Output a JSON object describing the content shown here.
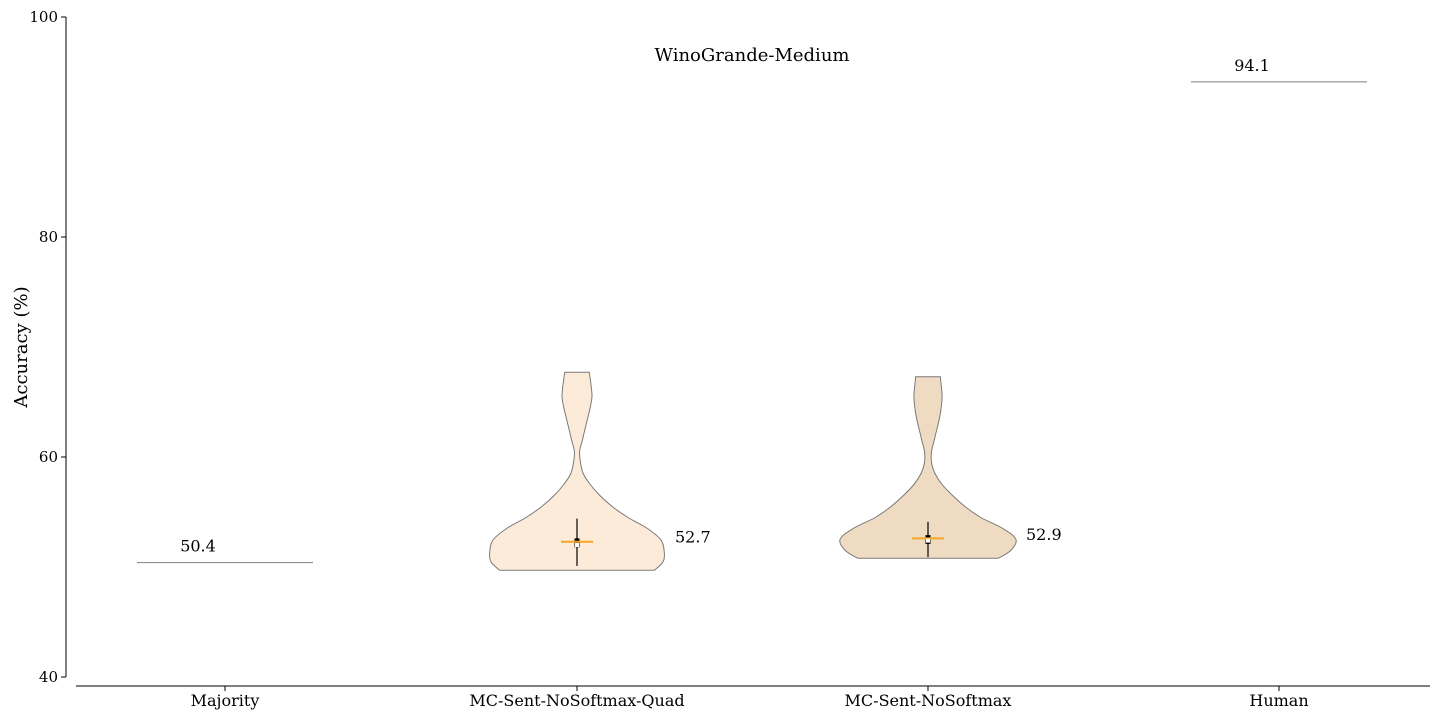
{
  "chart_data": {
    "type": "violin",
    "title": "WinoGrande-Medium",
    "xlabel": "",
    "ylabel": "Accuracy (%)",
    "ylim": [
      40,
      100
    ],
    "yticks": [
      "40",
      "60",
      "80",
      "100"
    ],
    "categories": [
      "Majority",
      "MC-Sent-NoSoftmax-Quad",
      "MC-Sent-NoSoftmax",
      "Human"
    ],
    "grid": false,
    "legend": "none",
    "reference_lines": [
      {
        "category": "Majority",
        "value": 50.4,
        "label": "50.4"
      },
      {
        "category": "Human",
        "value": 94.1,
        "label": "94.1"
      }
    ],
    "violins": [
      {
        "category": "MC-Sent-NoSoftmax-Quad",
        "min": 49.7,
        "max": 67.7,
        "mean": 52.3,
        "median": 52.0,
        "q1": 51.8,
        "q3": 52.6,
        "whisker_low": 50.1,
        "whisker_high": 54.4,
        "label": "52.7",
        "label_value": 52.7,
        "color": "#fdebd9",
        "density": [
          [
            49.7,
            0.88
          ],
          [
            50.5,
            0.98
          ],
          [
            51.5,
            0.99
          ],
          [
            52.5,
            0.95
          ],
          [
            53.5,
            0.8
          ],
          [
            54.5,
            0.58
          ],
          [
            55.5,
            0.4
          ],
          [
            56.5,
            0.26
          ],
          [
            57.5,
            0.15
          ],
          [
            58.5,
            0.07
          ],
          [
            59.5,
            0.04
          ],
          [
            60.5,
            0.03
          ],
          [
            61.5,
            0.06
          ],
          [
            62.5,
            0.09
          ],
          [
            63.5,
            0.12
          ],
          [
            64.5,
            0.15
          ],
          [
            65.5,
            0.17
          ],
          [
            66.5,
            0.16
          ],
          [
            67.7,
            0.14
          ]
        ]
      },
      {
        "category": "MC-Sent-NoSoftmax",
        "min": 50.8,
        "max": 67.3,
        "mean": 52.6,
        "median": 52.4,
        "q1": 52.1,
        "q3": 52.9,
        "whisker_low": 50.9,
        "whisker_high": 54.1,
        "label": "52.9",
        "label_value": 52.9,
        "color": "#efdbc2",
        "density": [
          [
            50.8,
            0.8
          ],
          [
            51.5,
            0.94
          ],
          [
            52.5,
            1.0
          ],
          [
            53.5,
            0.85
          ],
          [
            54.5,
            0.6
          ],
          [
            55.5,
            0.42
          ],
          [
            56.5,
            0.28
          ],
          [
            57.5,
            0.16
          ],
          [
            58.5,
            0.08
          ],
          [
            59.5,
            0.04
          ],
          [
            60.5,
            0.04
          ],
          [
            61.5,
            0.07
          ],
          [
            62.5,
            0.1
          ],
          [
            63.5,
            0.13
          ],
          [
            64.5,
            0.15
          ],
          [
            65.5,
            0.16
          ],
          [
            66.5,
            0.15
          ],
          [
            67.3,
            0.14
          ]
        ]
      }
    ]
  }
}
